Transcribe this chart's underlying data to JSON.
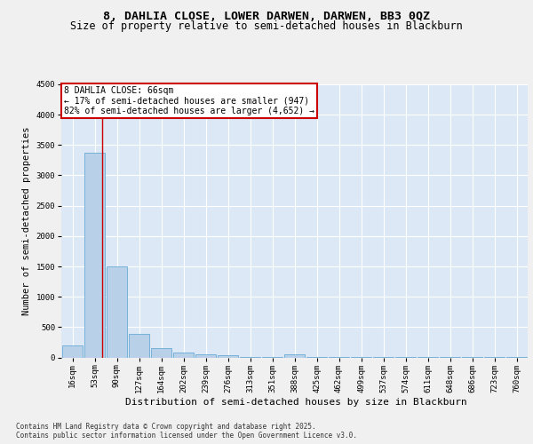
{
  "title1": "8, DAHLIA CLOSE, LOWER DARWEN, DARWEN, BB3 0QZ",
  "title2": "Size of property relative to semi-detached houses in Blackburn",
  "xlabel": "Distribution of semi-detached houses by size in Blackburn",
  "ylabel": "Number of semi-detached properties",
  "footer1": "Contains HM Land Registry data © Crown copyright and database right 2025.",
  "footer2": "Contains public sector information licensed under the Open Government Licence v3.0.",
  "bin_labels": [
    "16sqm",
    "53sqm",
    "90sqm",
    "127sqm",
    "164sqm",
    "202sqm",
    "239sqm",
    "276sqm",
    "313sqm",
    "351sqm",
    "388sqm",
    "425sqm",
    "462sqm",
    "499sqm",
    "537sqm",
    "574sqm",
    "611sqm",
    "648sqm",
    "686sqm",
    "723sqm",
    "760sqm"
  ],
  "bar_values": [
    200,
    3370,
    1500,
    390,
    150,
    75,
    55,
    40,
    5,
    3,
    50,
    3,
    2,
    2,
    1,
    1,
    1,
    1,
    1,
    1,
    1
  ],
  "bar_color": "#b8d0e8",
  "bar_edge_color": "#6aaad4",
  "plot_bg_color": "#dce8f5",
  "fig_bg_color": "#f0f0f0",
  "grid_color": "#ffffff",
  "annotation_text": "8 DAHLIA CLOSE: 66sqm\n← 17% of semi-detached houses are smaller (947)\n82% of semi-detached houses are larger (4,652) →",
  "annotation_box_color": "#ffffff",
  "annotation_border_color": "#cc0000",
  "vline_x": 1.35,
  "vline_color": "#cc0000",
  "ylim": [
    0,
    4500
  ],
  "yticks": [
    0,
    500,
    1000,
    1500,
    2000,
    2500,
    3000,
    3500,
    4000,
    4500
  ],
  "title1_fontsize": 9.5,
  "title2_fontsize": 8.5,
  "xlabel_fontsize": 8,
  "ylabel_fontsize": 7.5,
  "tick_fontsize": 6.5,
  "annot_fontsize": 7,
  "footer_fontsize": 5.5
}
